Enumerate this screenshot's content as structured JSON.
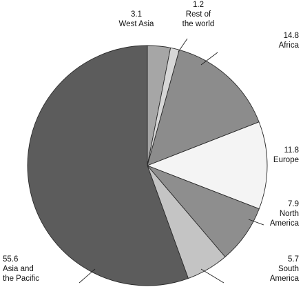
{
  "chart_data": {
    "type": "pie",
    "title": "",
    "start": "12 o'clock",
    "direction": "clockwise",
    "slices": [
      {
        "label": [
          "West Asia"
        ],
        "value_text": "3.1",
        "value": 3.1,
        "color": "#a6a6a6"
      },
      {
        "label": [
          "Rest of",
          "the world"
        ],
        "value_text": "1.2",
        "value": 1.2,
        "color": "#d6d6d6"
      },
      {
        "label": [
          "Africa"
        ],
        "value_text": "14.8",
        "value": 14.8,
        "color": "#8c8c8c"
      },
      {
        "label": [
          "Europe"
        ],
        "value_text": "11.8",
        "value": 11.8,
        "color": "#f4f4f4"
      },
      {
        "label": [
          "North",
          "America"
        ],
        "value_text": "7.9",
        "value": 7.9,
        "color": "#8e8e8e"
      },
      {
        "label": [
          "South",
          "America"
        ],
        "value_text": "5.7",
        "value": 5.7,
        "color": "#c4c4c4"
      },
      {
        "label": [
          "Asia and",
          "the Pacific"
        ],
        "value_text": "55.6",
        "value": 55.6,
        "color": "#5c5c5c"
      }
    ]
  }
}
